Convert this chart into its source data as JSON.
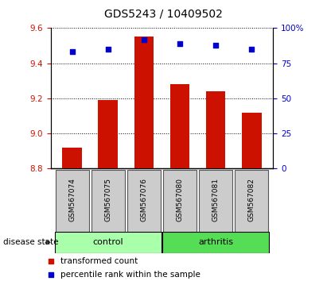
{
  "title": "GDS5243 / 10409502",
  "samples": [
    "GSM567074",
    "GSM567075",
    "GSM567076",
    "GSM567080",
    "GSM567081",
    "GSM567082"
  ],
  "bar_values": [
    8.92,
    9.19,
    9.55,
    9.28,
    9.24,
    9.12
  ],
  "percentile_values": [
    83,
    85,
    92,
    89,
    88,
    85
  ],
  "y_min": 8.8,
  "y_max": 9.6,
  "y_ticks": [
    8.8,
    9.0,
    9.2,
    9.4,
    9.6
  ],
  "y2_ticks": [
    0,
    25,
    50,
    75,
    100
  ],
  "bar_color": "#cc1100",
  "dot_color": "#0000cc",
  "control_color": "#aaffaa",
  "arthritis_color": "#55dd55",
  "label_bg_color": "#cccccc",
  "legend_bar_label": "transformed count",
  "legend_dot_label": "percentile rank within the sample",
  "disease_state_label": "disease state"
}
